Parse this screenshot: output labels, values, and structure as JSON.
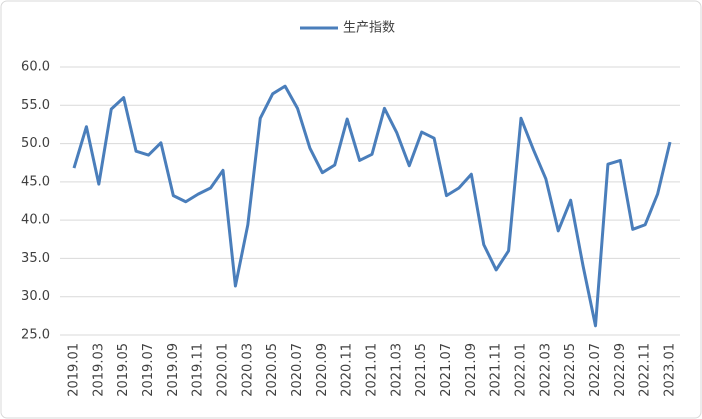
{
  "chart_data": {
    "type": "line",
    "categories": [
      "2019.01",
      null,
      "2019.03",
      null,
      "2019.05",
      null,
      "2019.07",
      null,
      "2019.09",
      null,
      "2019.11",
      null,
      "2020.01",
      null,
      "2020.03",
      null,
      "2020.05",
      null,
      "2020.07",
      null,
      "2020.09",
      null,
      "2020.11",
      null,
      "2021.01",
      null,
      "2021.03",
      null,
      "2021.05",
      null,
      "2021.07",
      null,
      "2021.09",
      null,
      "2021.11",
      null,
      "2022.01",
      null,
      "2022.03",
      null,
      "2022.05",
      null,
      "2022.07",
      null,
      "2022.09",
      null,
      "2022.11",
      null,
      "2023.01"
    ],
    "series": [
      {
        "name": "生产指数",
        "color": "#4a7ebb",
        "values": [
          46.8,
          52.2,
          44.7,
          54.5,
          56.0,
          49.0,
          48.5,
          50.1,
          43.2,
          42.4,
          43.4,
          44.2,
          46.5,
          31.4,
          39.4,
          53.3,
          56.5,
          57.5,
          54.6,
          49.4,
          46.2,
          47.2,
          53.2,
          47.8,
          48.6,
          54.6,
          51.4,
          47.1,
          51.5,
          50.7,
          43.2,
          44.2,
          46.0,
          36.8,
          33.5,
          36.0,
          53.3,
          49.2,
          45.4,
          38.6,
          42.6,
          34.0,
          26.2,
          47.3,
          47.8,
          38.8,
          39.4,
          43.4,
          50.2
        ]
      }
    ],
    "ylim": [
      25,
      60
    ],
    "yticks": [
      {
        "value": 25,
        "label": "25.0"
      },
      {
        "value": 30,
        "label": "30.0"
      },
      {
        "value": 35,
        "label": "35.0"
      },
      {
        "value": 40,
        "label": "40.0"
      },
      {
        "value": 45,
        "label": "45.0"
      },
      {
        "value": 50,
        "label": "50.0"
      },
      {
        "value": 55,
        "label": "55.0"
      },
      {
        "value": 60,
        "label": "60.0"
      }
    ],
    "grid": true,
    "legend": "top"
  }
}
